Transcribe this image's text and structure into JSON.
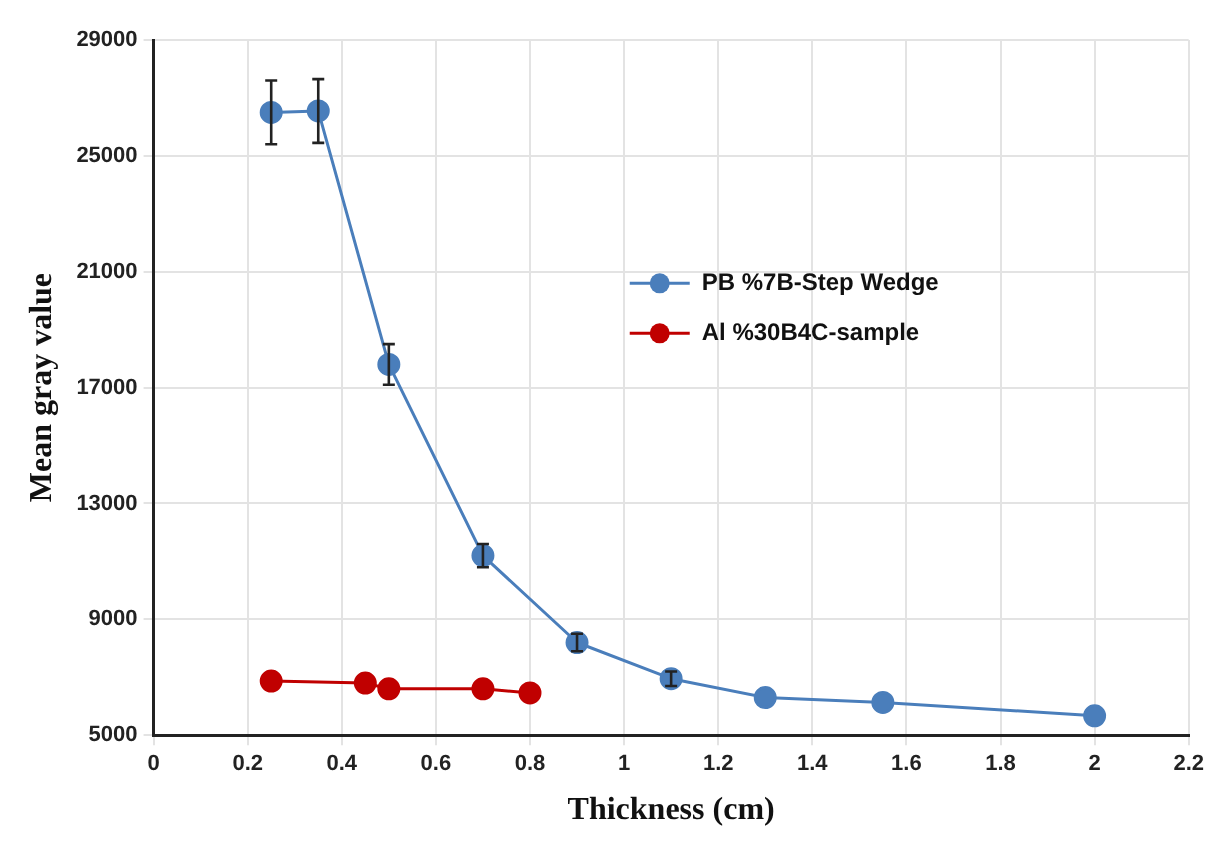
{
  "chart_data": {
    "type": "line",
    "xlabel": "Thickness (cm)",
    "ylabel": "Mean gray value",
    "xlim": [
      0,
      2.2
    ],
    "xticks": [
      0,
      0.2,
      0.4,
      0.6,
      0.8,
      1,
      1.2,
      1.4,
      1.6,
      1.8,
      2,
      2.2
    ],
    "ylim": [
      5000,
      29000
    ],
    "yticks": [
      5000,
      9000,
      13000,
      17000,
      21000,
      25000,
      29000
    ],
    "grid": true,
    "legend": "right",
    "marker": "circle",
    "line_style": "solid",
    "series": [
      {
        "name": "PB %7B-Step Wedge",
        "color": "#4a7ebb",
        "x": [
          0.25,
          0.35,
          0.5,
          0.7,
          0.9,
          1.1,
          1.3,
          1.55,
          2
        ],
        "values": [
          26500,
          26550,
          17800,
          11200,
          8200,
          6950,
          6300,
          6130,
          5670
        ],
        "errors": [
          1100,
          1100,
          700,
          400,
          300,
          250,
          null,
          null,
          null
        ]
      },
      {
        "name": "Al %30B4C-sample",
        "color": "#c00000",
        "x": [
          0.25,
          0.45,
          0.5,
          0.7,
          0.8
        ],
        "values": [
          6870,
          6800,
          6600,
          6600,
          6460
        ]
      }
    ]
  }
}
